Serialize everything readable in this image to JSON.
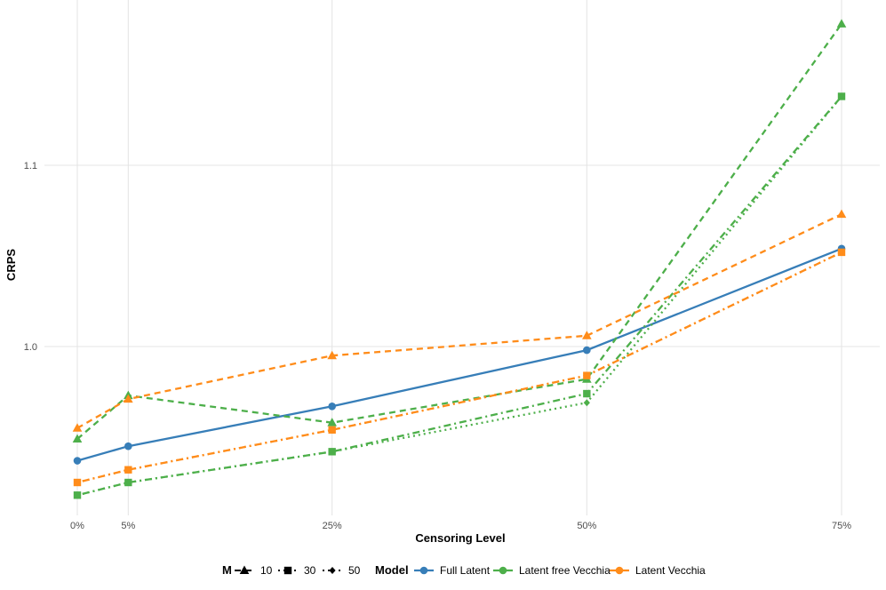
{
  "chart_data": {
    "type": "line",
    "xlabel": "Censoring Level",
    "ylabel": "CRPS",
    "categories": [
      "0%",
      "5%",
      "25%",
      "50%",
      "75%"
    ],
    "x": [
      0,
      5,
      25,
      50,
      75
    ],
    "xlim": [
      0,
      75
    ],
    "ylim": [
      0.915,
      1.178
    ],
    "yticks": [
      1.0,
      1.1
    ],
    "ytick_labels": [
      "1.0",
      "1.1"
    ],
    "grid": true,
    "legend_position": "bottom",
    "series": [
      {
        "model": "Full Latent",
        "M": "",
        "color": "#377eb8",
        "linetype": "solid",
        "shape": "circle",
        "values": [
          0.937,
          0.945,
          0.967,
          0.998,
          1.054
        ]
      },
      {
        "model": "Latent free Vecchia",
        "M": "10",
        "color": "#4daf4a",
        "linetype": "dashed",
        "shape": "triangle",
        "values": [
          0.949,
          0.973,
          0.958,
          0.982,
          1.178
        ]
      },
      {
        "model": "Latent free Vecchia",
        "M": "30",
        "color": "#4daf4a",
        "linetype": "dotdash",
        "shape": "square",
        "values": [
          0.918,
          0.925,
          0.942,
          0.974,
          1.138
        ]
      },
      {
        "model": "Latent free Vecchia",
        "M": "50",
        "color": "#4daf4a",
        "linetype": "dotted",
        "shape": "diamond",
        "values": [
          0.918,
          0.925,
          0.942,
          0.969,
          1.138
        ]
      },
      {
        "model": "Latent Vecchia",
        "M": "10",
        "color": "#ff8c1a",
        "linetype": "dashed",
        "shape": "triangle",
        "values": [
          0.955,
          0.971,
          0.995,
          1.006,
          1.073
        ]
      },
      {
        "model": "Latent Vecchia",
        "M": "30",
        "color": "#ff8c1a",
        "linetype": "dotdash",
        "shape": "square",
        "values": [
          0.925,
          0.932,
          0.954,
          0.984,
          1.052
        ]
      },
      {
        "model": "Latent Vecchia",
        "M": "50",
        "color": "#ff8c1a",
        "linetype": "dotted",
        "shape": "diamond",
        "values": [
          0.925,
          0.932,
          0.954,
          0.984,
          1.052
        ]
      }
    ],
    "legend": {
      "M_title": "M",
      "M_items": [
        {
          "label": "10",
          "shape": "triangle",
          "linetype": "dashed"
        },
        {
          "label": "30",
          "shape": "square",
          "linetype": "dotdash"
        },
        {
          "label": "50",
          "shape": "diamond",
          "linetype": "dotted"
        }
      ],
      "model_title": "Model",
      "model_items": [
        {
          "label": "Full Latent",
          "color": "#377eb8"
        },
        {
          "label": "Latent free Vecchia",
          "color": "#4daf4a"
        },
        {
          "label": "Latent Vecchia",
          "color": "#ff8c1a"
        }
      ]
    }
  }
}
